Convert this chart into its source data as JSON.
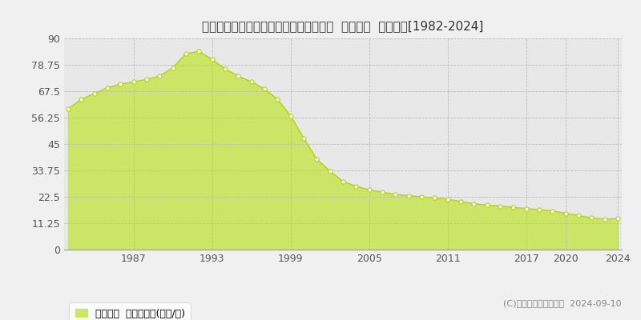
{
  "title": "兵庫県相生市旭４丁目１３６４番２２外  地価公示  地価推移[1982-2024]",
  "years": [
    1982,
    1983,
    1984,
    1985,
    1986,
    1987,
    1988,
    1989,
    1990,
    1991,
    1992,
    1993,
    1994,
    1995,
    1996,
    1997,
    1998,
    1999,
    2000,
    2001,
    2002,
    2003,
    2004,
    2005,
    2006,
    2007,
    2008,
    2009,
    2010,
    2011,
    2012,
    2013,
    2014,
    2015,
    2016,
    2017,
    2018,
    2019,
    2020,
    2021,
    2022,
    2023,
    2024
  ],
  "values": [
    60.0,
    64.0,
    66.5,
    69.0,
    70.5,
    71.5,
    72.5,
    74.0,
    77.5,
    83.5,
    84.5,
    81.0,
    77.0,
    74.0,
    71.5,
    68.5,
    64.0,
    57.0,
    47.5,
    38.5,
    33.5,
    29.0,
    27.0,
    25.5,
    24.5,
    23.5,
    23.0,
    22.5,
    22.0,
    21.5,
    20.5,
    19.5,
    19.0,
    18.5,
    18.0,
    17.5,
    17.0,
    16.5,
    15.5,
    14.5,
    13.5,
    13.0,
    13.2
  ],
  "fill_color": "#cce566",
  "line_color": "#b8d400",
  "marker_facecolor": "#ffffff",
  "marker_edgecolor": "#b8d400",
  "bg_color": "#f0f0f0",
  "plot_bg_color": "#e8e8e8",
  "grid_color": "#bbbbbb",
  "yticks": [
    0,
    11.25,
    22.5,
    33.75,
    45,
    56.25,
    67.5,
    78.75,
    90
  ],
  "xtick_years": [
    1987,
    1993,
    1999,
    2005,
    2011,
    2017,
    2020,
    2024
  ],
  "ylim": [
    0,
    90
  ],
  "xlim_min": 1982,
  "xlim_max": 2024,
  "legend_label": "地価公示  平均坪単価(万円/坪)",
  "copyright_text": "(C)土地価格ドットコム  2024-09-10",
  "title_fontsize": 11,
  "tick_fontsize": 9,
  "legend_fontsize": 9,
  "copyright_fontsize": 8
}
